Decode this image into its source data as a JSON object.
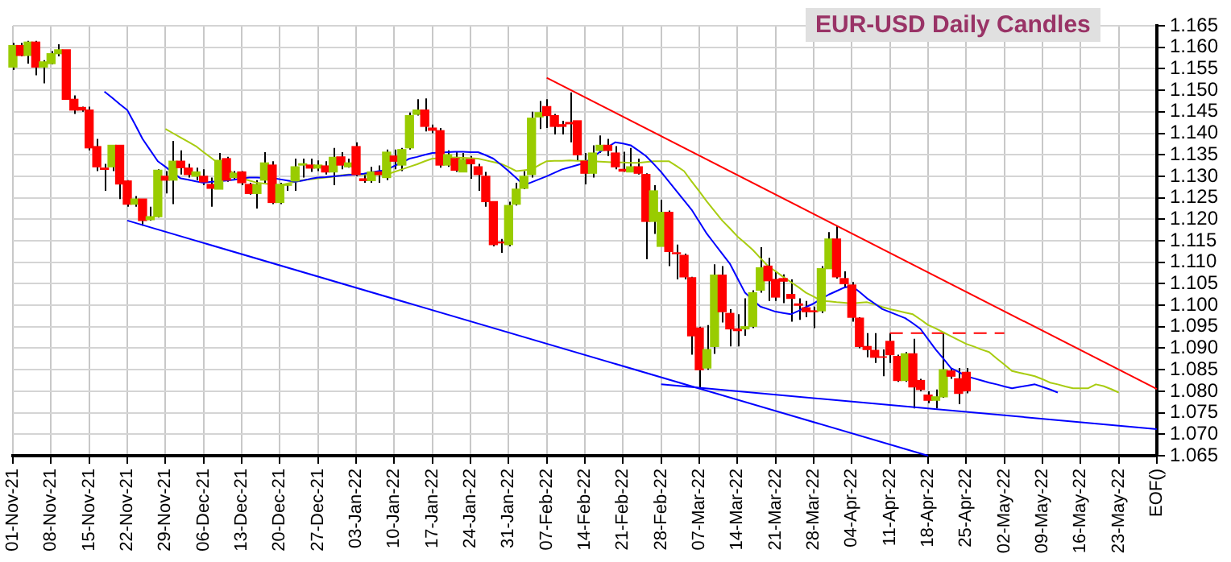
{
  "chart_data": {
    "type": "candlestick",
    "title": "EUR-USD Daily Candles",
    "grid": true,
    "categories": [
      "01-Nov-21",
      null,
      null,
      null,
      null,
      "08-Nov-21",
      null,
      null,
      null,
      null,
      "15-Nov-21",
      null,
      null,
      null,
      null,
      "22-Nov-21",
      null,
      null,
      null,
      null,
      "29-Nov-21",
      null,
      null,
      null,
      null,
      "06-Dec-21",
      null,
      null,
      null,
      null,
      "13-Dec-21",
      null,
      null,
      null,
      null,
      "20-Dec-21",
      null,
      null,
      null,
      null,
      "27-Dec-21",
      null,
      null,
      null,
      null,
      "03-Jan-22",
      null,
      null,
      null,
      null,
      "10-Jan-22",
      null,
      null,
      null,
      null,
      "17-Jan-22",
      null,
      null,
      null,
      null,
      "24-Jan-22",
      null,
      null,
      null,
      null,
      "31-Jan-22",
      null,
      null,
      null,
      null,
      "07-Feb-22",
      null,
      null,
      null,
      null,
      "14-Feb-22",
      null,
      null,
      null,
      null,
      "21-Feb-22",
      null,
      null,
      null,
      null,
      "28-Feb-22",
      null,
      null,
      null,
      null,
      "07-Mar-22",
      null,
      null,
      null,
      null,
      "14-Mar-22",
      null,
      null,
      null,
      null,
      "21-Mar-22",
      null,
      null,
      null,
      null,
      "28-Mar-22",
      null,
      null,
      null,
      null,
      "04-Apr-22",
      null,
      null,
      null,
      null,
      "11-Apr-22",
      null,
      null,
      null,
      null,
      "18-Apr-22",
      null,
      null,
      null,
      null,
      "25-Apr-22",
      null,
      null,
      null,
      null,
      "02-May-22",
      null,
      null,
      null,
      null,
      "09-May-22",
      null,
      null,
      null,
      null,
      "16-May-22",
      null,
      null,
      null,
      null,
      "23-May-22",
      null,
      null,
      null,
      null,
      "EOF()"
    ],
    "ylim": [
      1.065,
      1.165
    ],
    "yticks": [
      1.065,
      {
        "value": 1.07,
        "label": "1.070"
      },
      1.075,
      {
        "value": 1.08,
        "label": "1.080"
      },
      1.085,
      {
        "value": 1.09,
        "label": "1.090"
      },
      1.095,
      {
        "value": 1.1,
        "label": "1.100"
      },
      1.105,
      {
        "value": 1.11,
        "label": "1.110"
      },
      1.115,
      {
        "value": 1.12,
        "label": "1.120"
      },
      1.125,
      {
        "value": 1.13,
        "label": "1.130"
      },
      1.135,
      {
        "value": 1.14,
        "label": "1.140"
      },
      1.145,
      {
        "value": 1.15,
        "label": "1.150"
      },
      1.155,
      {
        "value": 1.16,
        "label": "1.160"
      },
      1.165
    ],
    "series": [
      {
        "ohlc": [
          [
            1.1554,
            1.161,
            1.1547,
            1.1604
          ],
          [
            1.1604,
            1.161,
            1.1579,
            1.1581
          ],
          [
            1.1581,
            1.1615,
            1.1562,
            1.1612
          ],
          [
            1.1612,
            1.1615,
            1.1535,
            1.1554
          ],
          [
            1.1554,
            1.157,
            1.1516,
            1.1566
          ],
          [
            1.1562,
            1.1591,
            1.156,
            1.1585
          ],
          [
            1.1585,
            1.1607,
            1.1579,
            1.1594
          ],
          [
            1.1594,
            1.1594,
            1.1479,
            1.1479
          ],
          [
            1.1479,
            1.1488,
            1.1445,
            1.1454
          ],
          [
            1.146,
            1.1462,
            1.145,
            1.1454
          ],
          [
            1.1454,
            1.1462,
            1.136,
            1.1366
          ],
          [
            1.1369,
            1.1387,
            1.1312,
            1.1322
          ],
          [
            1.1319,
            1.1329,
            1.1266,
            1.1316
          ],
          [
            1.1322,
            1.1372,
            1.1312,
            1.1372
          ],
          [
            1.1372,
            1.1372,
            1.1247,
            1.1282
          ],
          [
            1.1289,
            1.1291,
            1.1229,
            1.1235
          ],
          [
            1.1235,
            1.1254,
            1.1229,
            1.1247
          ],
          [
            1.1247,
            1.1247,
            1.1185,
            1.1197
          ],
          [
            1.1199,
            1.1229,
            1.1197,
            1.1206
          ],
          [
            1.1206,
            1.1316,
            1.1204,
            1.1314
          ],
          [
            1.13,
            1.1312,
            1.126,
            1.1291
          ],
          [
            1.1291,
            1.1382,
            1.1235,
            1.1335
          ],
          [
            1.1335,
            1.136,
            1.1304,
            1.132
          ],
          [
            1.1319,
            1.1329,
            1.1297,
            1.1304
          ],
          [
            1.13,
            1.132,
            1.1291,
            1.131
          ],
          [
            1.13,
            1.1316,
            1.1279,
            1.1287
          ],
          [
            1.1281,
            1.1297,
            1.1229,
            1.1272
          ],
          [
            1.127,
            1.1354,
            1.127,
            1.1337
          ],
          [
            1.1341,
            1.1345,
            1.1287,
            1.1291
          ],
          [
            1.1297,
            1.1312,
            1.1291,
            1.1307
          ],
          [
            1.131,
            1.1312,
            1.1279,
            1.1285
          ],
          [
            1.1281,
            1.1285,
            1.1257,
            1.126
          ],
          [
            1.126,
            1.1291,
            1.1225,
            1.1281
          ],
          [
            1.1291,
            1.1356,
            1.1285,
            1.1331
          ],
          [
            1.1326,
            1.1335,
            1.1235,
            1.1239
          ],
          [
            1.1239,
            1.1285,
            1.1235,
            1.1281
          ],
          [
            1.1279,
            1.1285,
            1.1266,
            1.1281
          ],
          [
            1.1289,
            1.1341,
            1.1266,
            1.1322
          ],
          [
            1.1326,
            1.1341,
            1.1297,
            1.1329
          ],
          [
            1.1326,
            1.1341,
            1.131,
            1.1319
          ],
          [
            1.1319,
            1.1337,
            1.1312,
            1.1326
          ],
          [
            1.1324,
            1.1335,
            1.1304,
            1.131
          ],
          [
            1.131,
            1.1366,
            1.1279,
            1.1344
          ],
          [
            1.1345,
            1.1356,
            1.1316,
            1.1326
          ],
          [
            1.1322,
            1.1341,
            1.132,
            1.1331
          ],
          [
            1.1369,
            1.1379,
            1.13,
            1.1304
          ],
          [
            1.1294,
            1.1304,
            1.1285,
            1.129
          ],
          [
            1.129,
            1.1322,
            1.1285,
            1.131
          ],
          [
            1.131,
            1.1325,
            1.1285,
            1.1304
          ],
          [
            1.1297,
            1.1362,
            1.1291,
            1.1356
          ],
          [
            1.1347,
            1.1362,
            1.1316,
            1.1335
          ],
          [
            1.1326,
            1.1366,
            1.1312,
            1.1362
          ],
          [
            1.1366,
            1.1448,
            1.1362,
            1.1441
          ],
          [
            1.1444,
            1.1479,
            1.1441,
            1.1454
          ],
          [
            1.1454,
            1.1481,
            1.1404,
            1.1416
          ],
          [
            1.1412,
            1.142,
            1.14,
            1.1407
          ],
          [
            1.1406,
            1.1412,
            1.132,
            1.1326
          ],
          [
            1.1326,
            1.136,
            1.1322,
            1.135
          ],
          [
            1.1341,
            1.1356,
            1.131,
            1.1314
          ],
          [
            1.131,
            1.1354,
            1.131,
            1.1339
          ],
          [
            1.1339,
            1.1347,
            1.1294,
            1.1329
          ],
          [
            1.1322,
            1.1329,
            1.1266,
            1.1304
          ],
          [
            1.13,
            1.131,
            1.1229,
            1.1241
          ],
          [
            1.1241,
            1.1241,
            1.1137,
            1.1141
          ],
          [
            1.1147,
            1.1154,
            1.1122,
            1.1145
          ],
          [
            1.1141,
            1.1241,
            1.1137,
            1.1232
          ],
          [
            1.1235,
            1.1285,
            1.1232,
            1.127
          ],
          [
            1.1272,
            1.1312,
            1.127,
            1.13
          ],
          [
            1.1304,
            1.145,
            1.1297,
            1.1435
          ],
          [
            1.1438,
            1.1475,
            1.141,
            1.1448
          ],
          [
            1.1462,
            1.1479,
            1.1412,
            1.1441
          ],
          [
            1.1441,
            1.1445,
            1.1397,
            1.1416
          ],
          [
            1.142,
            1.1429,
            1.1397,
            1.1416
          ],
          [
            1.1425,
            1.1495,
            1.1379,
            1.1422
          ],
          [
            1.1429,
            1.1429,
            1.1337,
            1.135
          ],
          [
            1.1335,
            1.1354,
            1.1281,
            1.1307
          ],
          [
            1.1307,
            1.1372,
            1.1297,
            1.1354
          ],
          [
            1.136,
            1.1395,
            1.1354,
            1.1372
          ],
          [
            1.1372,
            1.1387,
            1.1347,
            1.136
          ],
          [
            1.1354,
            1.137,
            1.1316,
            1.1322
          ],
          [
            1.1316,
            1.1357,
            1.131,
            1.1312
          ],
          [
            1.131,
            1.1366,
            1.131,
            1.1322
          ],
          [
            1.1322,
            1.1341,
            1.1304,
            1.1307
          ],
          [
            1.1304,
            1.1307,
            1.1107,
            1.1195
          ],
          [
            1.1195,
            1.1279,
            1.1166,
            1.1266
          ],
          [
            1.1137,
            1.1245,
            1.1137,
            1.1216
          ],
          [
            1.1216,
            1.122,
            1.1091,
            1.1125
          ],
          [
            1.1122,
            1.1141,
            1.106,
            1.112
          ],
          [
            1.1116,
            1.112,
            1.106,
            1.1066
          ],
          [
            1.1064,
            1.1066,
            1.0885,
            1.0929
          ],
          [
            1.0947,
            1.095,
            1.0807,
            1.085
          ],
          [
            1.0854,
            1.0954,
            1.085,
            1.0897
          ],
          [
            1.0904,
            1.1095,
            1.0887,
            1.107
          ],
          [
            1.107,
            1.1091,
            1.096,
            1.0985
          ],
          [
            1.0981,
            1.0991,
            1.0904,
            1.0945
          ],
          [
            1.0945,
            1.0979,
            1.0904,
            1.0941
          ],
          [
            1.0945,
            1.1016,
            1.0929,
            1.095
          ],
          [
            1.0951,
            1.1035,
            1.0947,
            1.1029
          ],
          [
            1.1035,
            1.1135,
            1.1029,
            1.1087
          ],
          [
            1.1091,
            1.111,
            1.101,
            1.1057
          ],
          [
            1.106,
            1.1079,
            1.101,
            1.1019
          ],
          [
            1.1062,
            1.1072,
            1.1005,
            1.1056
          ],
          [
            1.1025,
            1.106,
            1.0962,
            1.1016
          ],
          [
            1.1003,
            1.1016,
            1.0966,
            1.1
          ],
          [
            1.0994,
            1.101,
            1.0972,
            1.0985
          ],
          [
            1.0987,
            1.0997,
            1.0947,
            1.0985
          ],
          [
            1.0987,
            1.1091,
            1.0982,
            1.1085
          ],
          [
            1.1085,
            1.117,
            1.1085,
            1.1154
          ],
          [
            1.1154,
            1.1185,
            1.1062,
            1.1066
          ],
          [
            1.1062,
            1.1079,
            1.1041,
            1.105
          ],
          [
            1.1047,
            1.1054,
            1.0962,
            1.0972
          ],
          [
            1.097,
            1.0972,
            1.09,
            1.0904
          ],
          [
            1.0904,
            1.0935,
            1.0879,
            1.0897
          ],
          [
            1.0895,
            1.0935,
            1.0866,
            1.0879
          ],
          [
            1.088,
            1.0897,
            1.0835,
            1.0879
          ],
          [
            1.0916,
            1.0935,
            1.0866,
            1.0885
          ],
          [
            1.0881,
            1.0885,
            1.0822,
            1.0825
          ],
          [
            1.0825,
            1.0891,
            1.0822,
            1.0887
          ],
          [
            1.0887,
            1.0922,
            1.076,
            1.081
          ],
          [
            1.0825,
            1.0829,
            1.08,
            1.0804
          ],
          [
            1.0791,
            1.08,
            1.0772,
            1.0779
          ],
          [
            1.0779,
            1.0804,
            1.076,
            1.0787
          ],
          [
            1.0787,
            1.0935,
            1.0785,
            1.085
          ],
          [
            1.0847,
            1.0854,
            1.0829,
            1.0835
          ],
          [
            1.0829,
            1.0854,
            1.077,
            1.0795
          ],
          [
            1.0844,
            1.0854,
            1.0795,
            1.0801
          ],
          null,
          null,
          null,
          null,
          null,
          null,
          null,
          null,
          null,
          null,
          null,
          null,
          null,
          null,
          null,
          null,
          null,
          null,
          null,
          null,
          null,
          null,
          null,
          null,
          null
        ],
        "colors": [
          "#99cc00",
          "#ff0000",
          "#99cc00",
          "#ff0000",
          "#99cc00",
          "#99cc00",
          "#99cc00",
          "#ff0000",
          "#ff0000",
          "#ff0000",
          "#ff0000",
          "#ff0000",
          "#ff0000",
          "#99cc00",
          "#ff0000",
          "#ff0000",
          "#99cc00",
          "#ff0000",
          "#99cc00",
          "#99cc00",
          "#ff0000",
          "#99cc00",
          "#ff0000",
          "#ff0000",
          "#99cc00",
          "#ff0000",
          "#ff0000",
          "#99cc00",
          "#ff0000",
          "#99cc00",
          "#ff0000",
          "#ff0000",
          "#99cc00",
          "#99cc00",
          "#ff0000",
          "#99cc00",
          "#99cc00",
          "#99cc00",
          "#99cc00",
          "#ff0000",
          "#99cc00",
          "#ff0000",
          "#99cc00",
          "#ff0000",
          "#99cc00",
          "#ff0000",
          "#ff0000",
          "#99cc00",
          "#ff0000",
          "#99cc00",
          "#ff0000",
          "#99cc00",
          "#99cc00",
          "#99cc00",
          "#ff0000",
          "#ff0000",
          "#ff0000",
          "#99cc00",
          "#ff0000",
          "#99cc00",
          "#ff0000",
          "#ff0000",
          "#ff0000",
          "#ff0000",
          "#ff0000",
          "#99cc00",
          "#99cc00",
          "#99cc00",
          "#99cc00",
          "#99cc00",
          "#ff0000",
          "#ff0000",
          "#ff0000",
          "#ff0000",
          "#ff0000",
          "#ff0000",
          "#99cc00",
          "#99cc00",
          "#ff0000",
          "#ff0000",
          "#ff0000",
          "#99cc00",
          "#ff0000",
          "#ff0000",
          "#99cc00",
          "#99cc00",
          "#ff0000",
          "#ff0000",
          "#ff0000",
          "#ff0000",
          "#ff0000",
          "#99cc00",
          "#99cc00",
          "#ff0000",
          "#ff0000",
          "#ff0000",
          "#99cc00",
          "#99cc00",
          "#99cc00",
          "#ff0000",
          "#ff0000",
          "#ff0000",
          "#ff0000",
          "#ff0000",
          "#ff0000",
          "#ff0000",
          "#99cc00",
          "#99cc00",
          "#ff0000",
          "#ff0000",
          "#ff0000",
          "#ff0000",
          "#ff0000",
          "#ff0000",
          "#ff0000",
          "#ff0000",
          "#ff0000",
          "#99cc00",
          "#ff0000",
          "#ff0000",
          "#ff0000",
          "#99cc00",
          "#99cc00",
          "#ff0000",
          "#ff0000",
          "#ff0000",
          null,
          null,
          null,
          null,
          null,
          null,
          null,
          null,
          null,
          null,
          null,
          null,
          null,
          null,
          null,
          null,
          null,
          null,
          null,
          null,
          null,
          null,
          null,
          null,
          null
        ]
      },
      {
        "type": "line",
        "color": "#0000ff",
        "values": [
          null,
          null,
          null,
          null,
          null,
          null,
          null,
          null,
          null,
          null,
          null,
          null,
          1.1497,
          1.1483,
          1.1468,
          1.1454,
          1.1421,
          1.1387,
          1.1361,
          1.1335,
          1.1322,
          1.1308,
          1.1295,
          1.1292,
          1.1288,
          1.1285,
          1.1287,
          1.1288,
          1.129,
          1.1292,
          1.1295,
          1.1297,
          1.1297,
          1.1296,
          1.1296,
          1.1293,
          1.129,
          1.1287,
          1.129,
          1.1294,
          1.1297,
          1.1298,
          1.13,
          1.1301,
          1.1303,
          1.1304,
          1.1306,
          1.1309,
          1.1312,
          1.1315,
          1.1324,
          1.1332,
          1.1341,
          1.1345,
          1.135,
          1.1354,
          1.1355,
          1.1356,
          1.1357,
          1.1357,
          1.1356,
          1.1356,
          1.1349,
          1.1341,
          1.1327,
          1.1312,
          1.1296,
          1.1279,
          1.1286,
          1.1293,
          1.13,
          1.1308,
          1.1316,
          1.1321,
          1.1326,
          1.1331,
          1.1344,
          1.1357,
          1.1368,
          1.1379,
          1.1376,
          1.1372,
          1.136,
          1.1347,
          1.1329,
          1.131,
          1.1288,
          1.1266,
          1.1244,
          1.1222,
          1.1194,
          1.1166,
          1.1143,
          1.112,
          1.1097,
          1.1063,
          1.1029,
          1.1013,
          1.0997,
          1.0991,
          1.0985,
          1.0982,
          1.0979,
          1.0987,
          1.0996,
          1.1004,
          1.1015,
          1.1025,
          1.1033,
          1.1041,
          1.1045,
          1.1031,
          1.1016,
          1.1004,
          1.0991,
          1.0984,
          1.0977,
          1.097,
          1.0958,
          1.0945,
          1.0921,
          1.0897,
          1.0876,
          1.0854,
          1.0845,
          1.0835,
          1.083,
          1.0825,
          1.082,
          1.0816,
          1.0811,
          1.0807,
          1.081,
          1.0813,
          1.0816,
          1.081,
          1.0804,
          1.0797,
          null,
          null,
          null,
          null,
          null,
          null,
          null,
          null,
          null,
          null,
          null,
          null,
          null
        ]
      },
      {
        "type": "line",
        "color": "#a8cc10",
        "values": [
          null,
          null,
          null,
          null,
          null,
          null,
          null,
          null,
          null,
          null,
          null,
          null,
          null,
          null,
          null,
          null,
          null,
          null,
          null,
          null,
          1.141,
          1.14,
          1.139,
          1.138,
          1.137,
          1.1356,
          1.1343,
          1.1329,
          1.1318,
          1.1306,
          1.1295,
          1.129,
          1.1285,
          1.1283,
          1.1281,
          1.1279,
          1.1283,
          1.1287,
          1.1291,
          1.1293,
          1.1295,
          1.1297,
          1.1299,
          1.1302,
          1.1304,
          1.1304,
          1.1304,
          1.1304,
          1.1304,
          1.1304,
          1.131,
          1.1316,
          1.1322,
          1.1328,
          1.1335,
          1.1341,
          1.1342,
          1.1343,
          1.1344,
          1.1343,
          1.1342,
          1.1341,
          1.1337,
          1.1333,
          1.1329,
          1.1321,
          1.1312,
          1.1314,
          1.1316,
          1.1326,
          1.1335,
          1.1336,
          1.1336,
          1.1337,
          1.1336,
          1.1336,
          1.1335,
          1.1334,
          1.1333,
          1.1332,
          1.1332,
          1.1331,
          1.1331,
          1.1333,
          1.1335,
          1.1335,
          1.1335,
          1.1324,
          1.1312,
          1.1288,
          1.1265,
          1.1241,
          1.1219,
          1.1197,
          1.1179,
          1.116,
          1.1145,
          1.1129,
          1.111,
          1.1091,
          1.1079,
          1.1066,
          1.1054,
          1.1042,
          1.1029,
          1.102,
          1.101,
          1.1009,
          1.1007,
          1.1006,
          1.1004,
          1.1006,
          1.1007,
          1.1002,
          1.0996,
          1.0991,
          1.0987,
          1.0983,
          1.0979,
          1.0967,
          1.0954,
          1.0946,
          1.0937,
          1.0928,
          1.0919,
          1.091,
          1.0904,
          1.0897,
          1.0891,
          1.0876,
          1.0862,
          1.0847,
          1.0843,
          1.0839,
          1.0835,
          1.0828,
          1.082,
          1.0816,
          1.0811,
          1.0807,
          1.0807,
          1.0807,
          1.0816,
          1.0812,
          1.0805,
          1.0797,
          null,
          null,
          null,
          null,
          null
        ]
      },
      {
        "type": "line",
        "color": "#ff0000",
        "x": [
          "07-Feb-22",
          "EOF()"
        ],
        "values": [
          1.1529,
          1.0805
        ]
      },
      {
        "type": "line",
        "color": "#0000ff",
        "x": [
          "22-Nov-21",
          "18-Apr-22"
        ],
        "values": [
          1.1197,
          1.065
        ]
      },
      {
        "type": "line",
        "color": "#0000ff",
        "x": [
          "28-Feb-22",
          "EOF()"
        ],
        "values": [
          1.0816,
          1.0712
        ]
      },
      {
        "type": "line",
        "color": "#ff0000",
        "line_style": "dashed",
        "x": [
          "11-Apr-22",
          "02-May-22"
        ],
        "values": [
          1.0935,
          1.0935
        ]
      }
    ]
  }
}
